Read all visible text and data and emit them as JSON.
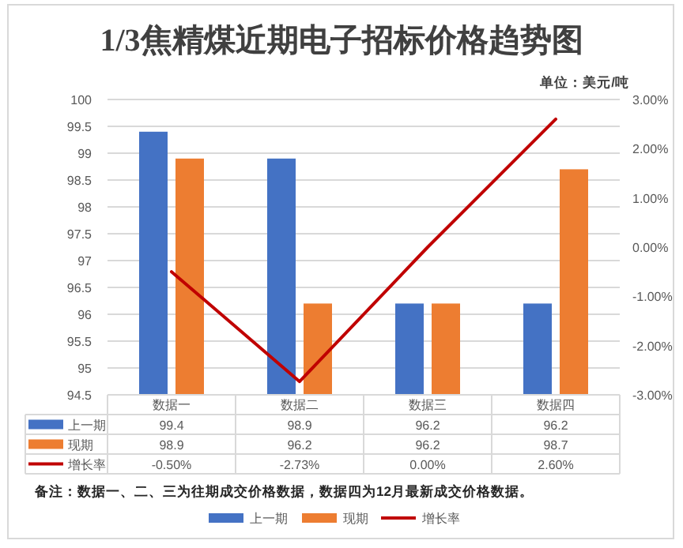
{
  "chart_data": {
    "type": "bar",
    "title": "1/3焦精煤近期电子招标价格趋势图",
    "subtitle": "单位：美元/吨",
    "categories": [
      "数据一",
      "数据二",
      "数据三",
      "数据四"
    ],
    "series": [
      {
        "name": "上一期",
        "color": "#4472c4",
        "values": [
          99.4,
          98.9,
          96.2,
          96.2
        ],
        "value_labels": [
          "99.4",
          "98.9",
          "96.2",
          "96.2"
        ]
      },
      {
        "name": "现期",
        "color": "#ed7d31",
        "values": [
          98.9,
          96.2,
          96.2,
          98.7
        ],
        "value_labels": [
          "98.9",
          "96.2",
          "96.2",
          "98.7"
        ]
      },
      {
        "name": "增长率",
        "type": "line",
        "axis": "y2",
        "color": "#c00000",
        "values": [
          -0.5,
          -2.73,
          0,
          2.6
        ],
        "value_labels": [
          "-0.50%",
          "-2.73%",
          "0.00%",
          "2.60%"
        ]
      }
    ],
    "ylim": [
      94.5,
      100
    ],
    "yticks": [
      94.5,
      95,
      95.5,
      96,
      96.5,
      97,
      97.5,
      98,
      98.5,
      99,
      99.5,
      100
    ],
    "y2lim": [
      -3,
      3
    ],
    "y2ticks": [
      {
        "value": -3,
        "label": "-3.00%"
      },
      {
        "value": -2,
        "label": "-2.00%"
      },
      {
        "value": -1,
        "label": "-1.00%"
      },
      {
        "value": 0,
        "label": "0.00%"
      },
      {
        "value": 1,
        "label": "1.00%"
      },
      {
        "value": 2,
        "label": "2.00%"
      },
      {
        "value": 3,
        "label": "3.00%"
      }
    ],
    "grid": "y",
    "legend": "bottom",
    "annotations": [
      "备注：数据一、二、三为往期成交价格数据，数据四为12月最新成交价格数据。"
    ]
  }
}
